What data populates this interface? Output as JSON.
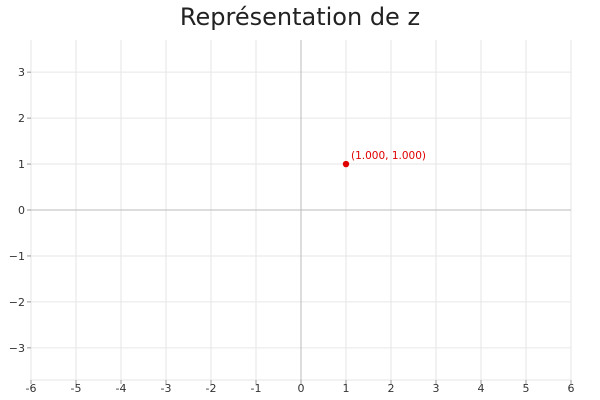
{
  "chart_data": {
    "type": "scatter",
    "title": "Représentation de z",
    "xlabel": "",
    "ylabel": "",
    "xlim": [
      -6,
      6
    ],
    "ylim": [
      -3.7,
      3.7
    ],
    "x_ticks": [
      "-6",
      "-5",
      "-4",
      "-3",
      "-2",
      "-1",
      "0",
      "1",
      "2",
      "3",
      "4",
      "5",
      "6"
    ],
    "y_ticks": [
      "3",
      "2",
      "1",
      "0",
      "−1",
      "−2",
      "−3"
    ],
    "grid": true,
    "points": [
      {
        "x": 1,
        "y": 1,
        "label": "(1.000, 1.000)",
        "color": "#e00000"
      }
    ],
    "colors": {
      "grid": "#e6e6e6",
      "axis": "#bbbbbb",
      "tick_text": "#333333"
    }
  }
}
